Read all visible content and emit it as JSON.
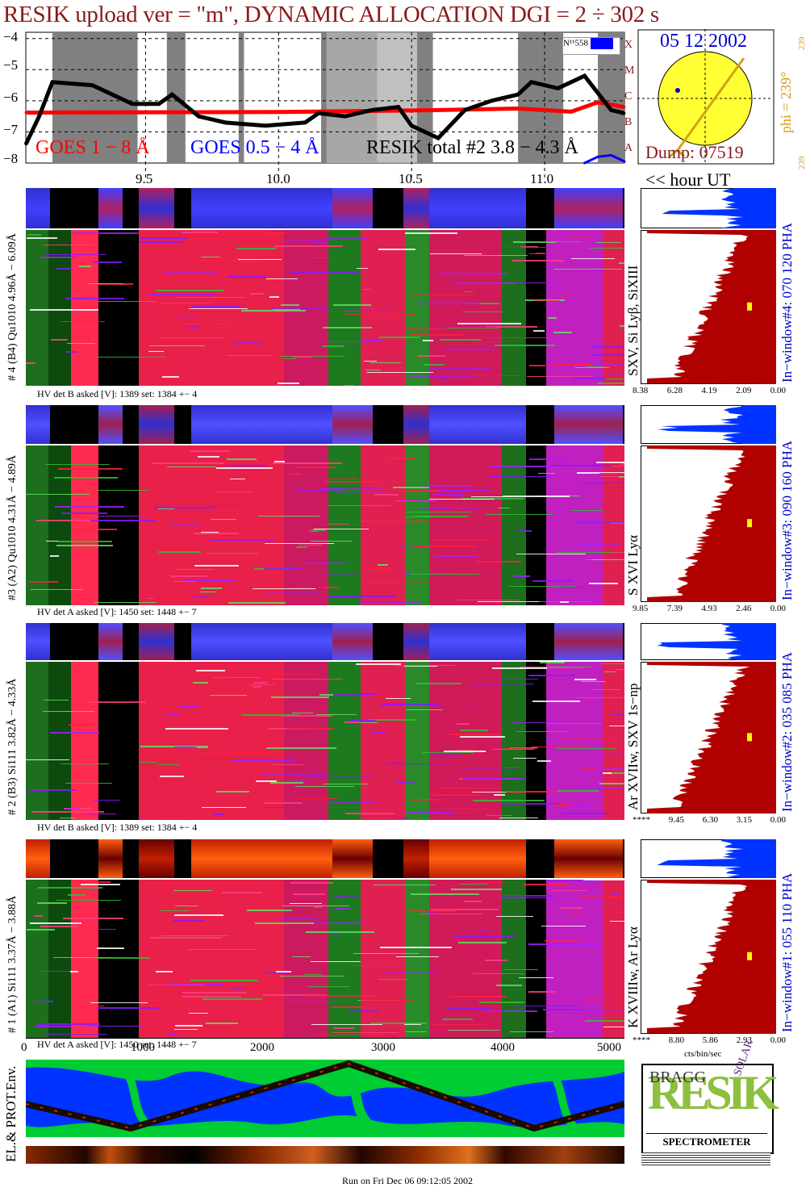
{
  "title": "RESIK upload ver = \"m\", DYNAMIC ALLOCATION  DGI =   2 ÷ 302 s",
  "goes_panel": {
    "yticks": [
      "−4",
      "−5",
      "−6",
      "−7",
      "−8"
    ],
    "legend_goes18": "GOES 1 − 8 Å",
    "legend_goes054": "GOES 0.5 − 4 Å",
    "legend_resik": "RESIK total #2  3.8 − 4.3 Å",
    "class_letters": [
      "X",
      "M",
      "C",
      "B",
      "A"
    ],
    "nu_label": "N¹¹558",
    "hour_ticks": [
      "9.5",
      "10.0",
      "10.5",
      "11.0"
    ],
    "hour_axis_label": "<< hour UT",
    "colors": {
      "goes18": "#ff0000",
      "goes054": "#0000ff",
      "resik": "#000000",
      "night": "#808080"
    }
  },
  "sun": {
    "date": "05 12 2002",
    "dump": "Dump: 07519",
    "phi_label": "phi = 239°",
    "phi_small_top": "239",
    "phi_small_bottom": "239"
  },
  "channels": [
    {
      "id": "ch4",
      "spec_label": "# 4 (B4) Qu1010 4.96Å − 6.09Å",
      "lines_label": "SXV, Si Lyβ, SiXIII",
      "window_label": "In−window#4:  070 120 PHA",
      "hv_text": "HV det B asked [V]:  1389 set:  1384  +−    4",
      "pha_ticks": [
        "8.38",
        "6.28",
        "4.19",
        "2.09",
        "0.00"
      ]
    },
    {
      "id": "ch3",
      "spec_label": "#3 (A2) Qu1010  4.31Å − 4.89Å",
      "lines_label": "S XVI Lyα",
      "window_label": "In−window#3:  090 160 PHA",
      "hv_text": "HV det A asked [V]:  1450 set:  1448  +−    7",
      "pha_ticks": [
        "9.85",
        "7.39",
        "4.93",
        "2.46",
        "0.00"
      ]
    },
    {
      "id": "ch2",
      "spec_label": "# 2 (B3) Si111  3.82Å − 4.33Å",
      "lines_label": "Ar XVIIw, SXV 1s−np",
      "window_label": "In−window#2:  035 085 PHA",
      "hv_text": "HV det B asked [V]:  1389 set:  1384  +−    4",
      "pha_ticks": [
        "****",
        "9.45",
        "6.30",
        "3.15",
        "0.00"
      ]
    },
    {
      "id": "ch1",
      "spec_label": "# 1 (A1) Si111  3.37Å − 3.88Å",
      "lines_label": "K XVIIIw, Ar Lyα",
      "window_label": "In−window#1:  055 110 PHA",
      "hv_text": "HV det A asked [V]:  1450 set:  1448  +−    7",
      "pha_ticks": [
        "****",
        "8.80",
        "5.86",
        "2.93",
        "0.00"
      ]
    }
  ],
  "sample_axis": {
    "ticks": [
      "0",
      "1000",
      "2000",
      "3000",
      "4000",
      "5000"
    ],
    "unit_label": "cts/bin/sec"
  },
  "env_label": "EL.& PROT.Env.",
  "logo": {
    "letters": "RESIK",
    "bragg": "BRAGG",
    "solar": "SOLAR",
    "caption": "SPECTROMETER"
  },
  "footer": "Run on Fri Dec 06 09:12:05 2002",
  "chart_data": {
    "type": "line",
    "title": "RESIK upload ver = \"m\", DYNAMIC ALLOCATION  DGI =   2 ÷ 302 s",
    "xlabel": "<< hour UT",
    "ylabel": "",
    "x_ticks": [
      9.5,
      10.0,
      10.5,
      11.0
    ],
    "xlim": [
      9.05,
      11.3
    ],
    "ylim": [
      -8,
      -3.8
    ],
    "grid": true,
    "series": [
      {
        "name": "GOES 1 − 8 Å",
        "color": "#ff0000",
        "x": [
          9.05,
          9.5,
          10.0,
          10.3,
          10.6,
          10.9,
          11.1,
          11.2,
          11.3
        ],
        "y": [
          -6.38,
          -6.37,
          -6.36,
          -6.33,
          -6.3,
          -6.25,
          -6.35,
          -6.05,
          -6.2
        ]
      },
      {
        "name": "RESIK total #2  3.8 − 4.3 Å",
        "color": "#000000",
        "x": [
          9.05,
          9.1,
          9.15,
          9.3,
          9.45,
          9.55,
          9.6,
          9.7,
          9.8,
          9.95,
          10.1,
          10.15,
          10.25,
          10.35,
          10.45,
          10.5,
          10.6,
          10.7,
          10.8,
          10.9,
          10.95,
          11.05,
          11.15,
          11.25,
          11.3
        ],
        "y": [
          -7.4,
          -6.5,
          -5.4,
          -5.5,
          -6.1,
          -6.1,
          -5.8,
          -6.5,
          -6.7,
          -6.8,
          -6.7,
          -6.4,
          -6.5,
          -6.3,
          -6.2,
          -6.8,
          -7.2,
          -6.3,
          -6.0,
          -5.8,
          -5.4,
          -5.6,
          -5.2,
          -6.3,
          -6.4
        ]
      },
      {
        "name": "GOES 0.5 − 4 Å",
        "color": "#0000ff",
        "x": [
          11.15,
          11.2,
          11.25,
          11.3
        ],
        "y": [
          -8.0,
          -7.8,
          -7.75,
          -7.95
        ]
      }
    ]
  }
}
